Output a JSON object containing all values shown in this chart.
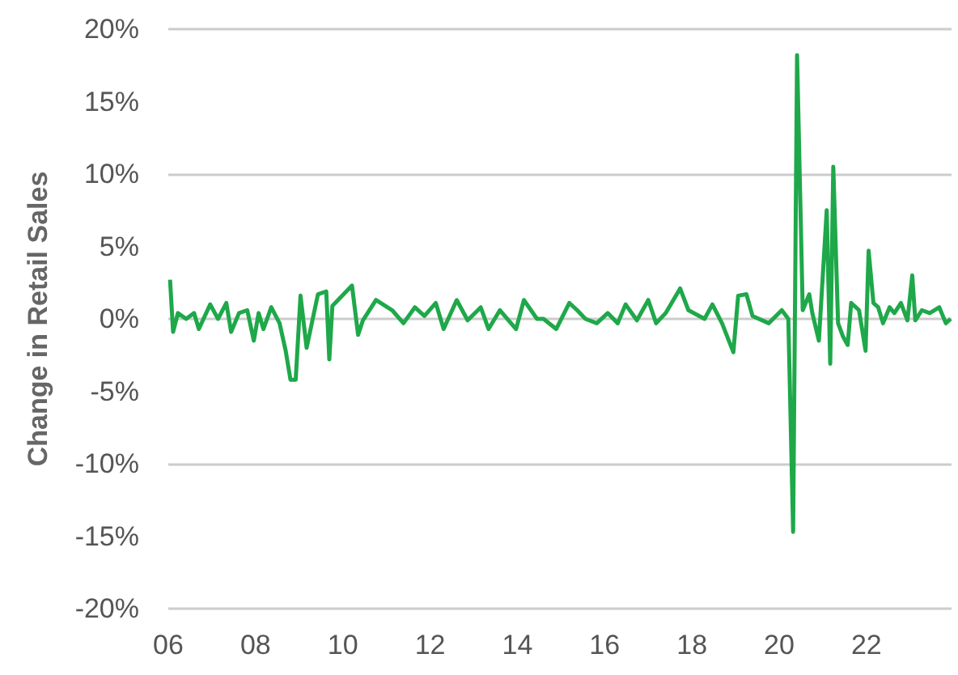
{
  "chart_data": {
    "type": "line",
    "ylabel": "Change in Retail Sales",
    "grid": "y",
    "marker": "none",
    "line_style": "solid",
    "xlim": [
      2006,
      2023.95
    ],
    "ylim": [
      -20,
      20
    ],
    "xticks": [
      {
        "value": 2006,
        "label": "06"
      },
      {
        "value": 2008,
        "label": "08"
      },
      {
        "value": 2010,
        "label": "10"
      },
      {
        "value": 2012,
        "label": "12"
      },
      {
        "value": 2014,
        "label": "14"
      },
      {
        "value": 2016,
        "label": "16"
      },
      {
        "value": 2018,
        "label": "18"
      },
      {
        "value": 2020,
        "label": "20"
      },
      {
        "value": 2022,
        "label": "22"
      }
    ],
    "yticks": [
      {
        "value": -20,
        "label": "-20%"
      },
      {
        "value": -15,
        "label": "-15%"
      },
      {
        "value": -10,
        "label": "-10%"
      },
      {
        "value": -5,
        "label": "-5%"
      },
      {
        "value": 0,
        "label": "0%"
      },
      {
        "value": 5,
        "label": "5%"
      },
      {
        "value": 10,
        "label": "10%"
      },
      {
        "value": 15,
        "label": "15%"
      },
      {
        "value": 20,
        "label": "20%"
      }
    ],
    "x": [
      2006.04,
      2006.11,
      2006.22,
      2006.41,
      2006.59,
      2006.7,
      2006.96,
      2007.14,
      2007.33,
      2007.44,
      2007.62,
      2007.81,
      2007.96,
      2008.07,
      2008.18,
      2008.36,
      2008.55,
      2008.69,
      2008.8,
      2008.92,
      2009.03,
      2009.17,
      2009.43,
      2009.62,
      2009.69,
      2009.76,
      2010.21,
      2010.35,
      2010.46,
      2010.76,
      2011.13,
      2011.39,
      2011.65,
      2011.87,
      2012.13,
      2012.31,
      2012.61,
      2012.86,
      2013.16,
      2013.34,
      2013.6,
      2013.97,
      2014.15,
      2014.45,
      2014.6,
      2014.89,
      2015.19,
      2015.37,
      2015.56,
      2015.82,
      2016.07,
      2016.3,
      2016.48,
      2016.74,
      2017.0,
      2017.18,
      2017.4,
      2017.73,
      2017.92,
      2018.29,
      2018.47,
      2018.69,
      2018.95,
      2019.06,
      2019.25,
      2019.39,
      2019.76,
      2020.06,
      2020.21,
      2020.32,
      2020.41,
      2020.54,
      2020.69,
      2020.76,
      2020.91,
      2021.09,
      2021.17,
      2021.24,
      2021.35,
      2021.46,
      2021.57,
      2021.65,
      2021.83,
      2021.98,
      2022.05,
      2022.16,
      2022.27,
      2022.38,
      2022.53,
      2022.64,
      2022.79,
      2022.94,
      2023.05,
      2023.12,
      2023.27,
      2023.45,
      2023.67,
      2023.82,
      2023.93
    ],
    "series": [
      {
        "color": "#1fa84a",
        "values": [
          2.7,
          -0.9,
          0.4,
          0,
          0.4,
          -0.7,
          1.0,
          0,
          1.1,
          -0.9,
          0.4,
          0.6,
          -1.5,
          0.4,
          -0.7,
          0.8,
          -0.3,
          -2.2,
          -4.2,
          -4.2,
          1.6,
          -2.0,
          1.7,
          1.9,
          -2.8,
          0.9,
          2.3,
          -1.1,
          -0.1,
          1.3,
          0.6,
          -0.3,
          0.8,
          0.2,
          1.1,
          -0.7,
          1.3,
          -0.1,
          0.8,
          -0.7,
          0.6,
          -0.7,
          1.3,
          0,
          0,
          -0.7,
          1.1,
          0.6,
          0,
          -0.3,
          0.4,
          -0.3,
          1.0,
          -0.1,
          1.3,
          -0.3,
          0.4,
          2.1,
          0.6,
          0,
          1.0,
          -0.3,
          -2.3,
          1.6,
          1.7,
          0.2,
          -0.3,
          0.6,
          0,
          -14.7,
          18.2,
          0.6,
          1.7,
          0.4,
          -1.5,
          7.5,
          -3.1,
          10.5,
          -0.3,
          -1.2,
          -1.8,
          1.1,
          0.6,
          -2.2,
          4.7,
          1.1,
          0.8,
          -0.3,
          0.8,
          0.4,
          1.1,
          -0.1,
          3.0,
          -0.1,
          0.6,
          0.4,
          0.8,
          -0.3,
          0
        ]
      }
    ]
  }
}
